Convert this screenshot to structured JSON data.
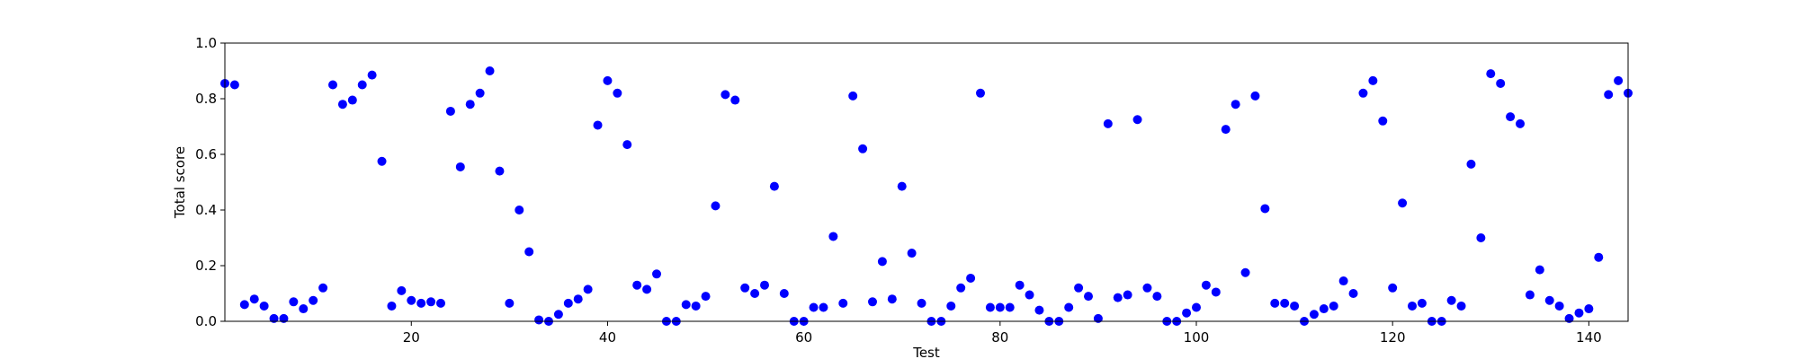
{
  "chart_data": {
    "type": "scatter",
    "title": "",
    "xlabel": "Test",
    "ylabel": "Total score",
    "xlim": [
      1,
      144
    ],
    "ylim": [
      0.0,
      1.0
    ],
    "xticks": [
      20,
      40,
      60,
      80,
      100,
      120,
      140
    ],
    "xtick_labels": [
      "20",
      "40",
      "60",
      "80",
      "100",
      "120",
      "140"
    ],
    "yticks": [
      0.0,
      0.2,
      0.4,
      0.6,
      0.8,
      1.0
    ],
    "ytick_labels": [
      "0.0",
      "0.2",
      "0.4",
      "0.6",
      "0.8",
      "1.0"
    ],
    "grid": false,
    "legend": "none",
    "colors": {
      "marker": "#0000ff",
      "axes": "#000000",
      "background": "#ffffff"
    },
    "series": [
      {
        "x": [
          1,
          2,
          3,
          4,
          5,
          6,
          7,
          8,
          9,
          10,
          11,
          12,
          13,
          14,
          15,
          16,
          17,
          18,
          19,
          20,
          21,
          22,
          23,
          24,
          25,
          26,
          27,
          28,
          29,
          30,
          31,
          32,
          33,
          34,
          35,
          36,
          37,
          38,
          39,
          40,
          41,
          42,
          43,
          44,
          45,
          46,
          47,
          48,
          49,
          50,
          51,
          52,
          53,
          54,
          55,
          56,
          57,
          58,
          59,
          60,
          61,
          62,
          63,
          64,
          65,
          66,
          67,
          68,
          69,
          70,
          71,
          72,
          73,
          74,
          75,
          76,
          77,
          78,
          79,
          80,
          81,
          82,
          83,
          84,
          85,
          86,
          87,
          88,
          89,
          90,
          91,
          92,
          93,
          94,
          95,
          96,
          97,
          98,
          99,
          100,
          101,
          102,
          103,
          104,
          105,
          106,
          107,
          108,
          109,
          110,
          111,
          112,
          113,
          114,
          115,
          116,
          117,
          118,
          119,
          120,
          121,
          122,
          123,
          124,
          125,
          126,
          127,
          128,
          129,
          130,
          131,
          132,
          133,
          134,
          135,
          136,
          137,
          138,
          139,
          140,
          141,
          142,
          143,
          144
        ],
        "y": [
          0.855,
          0.85,
          0.06,
          0.08,
          0.055,
          0.01,
          0.01,
          0.07,
          0.045,
          0.075,
          0.12,
          0.85,
          0.78,
          0.795,
          0.85,
          0.885,
          0.575,
          0.055,
          0.11,
          0.075,
          0.065,
          0.07,
          0.065,
          0.755,
          0.555,
          0.78,
          0.82,
          0.9,
          0.54,
          0.065,
          0.4,
          0.25,
          0.005,
          0.0,
          0.025,
          0.065,
          0.08,
          0.115,
          0.705,
          0.865,
          0.82,
          0.635,
          0.13,
          0.115,
          0.17,
          0.0,
          0.0,
          0.06,
          0.055,
          0.09,
          0.415,
          0.815,
          0.795,
          0.12,
          0.1,
          0.13,
          0.485,
          0.1,
          0.0,
          0.0,
          0.05,
          0.05,
          0.305,
          0.065,
          0.81,
          0.62,
          0.07,
          0.215,
          0.08,
          0.485,
          0.245,
          0.065,
          0.0,
          0.0,
          0.055,
          0.12,
          0.155,
          0.82,
          0.05,
          0.05,
          0.05,
          0.13,
          0.095,
          0.04,
          0.0,
          0.0,
          0.05,
          0.12,
          0.09,
          0.01,
          0.71,
          0.085,
          0.095,
          0.725,
          0.12,
          0.09,
          0.0,
          0.0,
          0.03,
          0.05,
          0.13,
          0.105,
          0.69,
          0.78,
          0.175,
          0.81,
          0.405,
          0.065,
          0.065,
          0.055,
          0.0,
          0.025,
          0.045,
          0.055,
          0.145,
          0.1,
          0.82,
          0.865,
          0.72,
          0.12,
          0.425,
          0.055,
          0.065,
          0.0,
          0.0,
          0.075,
          0.055,
          0.565,
          0.3,
          0.89,
          0.855,
          0.735,
          0.71,
          0.095,
          0.185,
          0.075,
          0.055,
          0.01,
          0.03,
          0.045,
          0.23,
          0.815,
          0.865,
          0.82
        ]
      }
    ]
  }
}
